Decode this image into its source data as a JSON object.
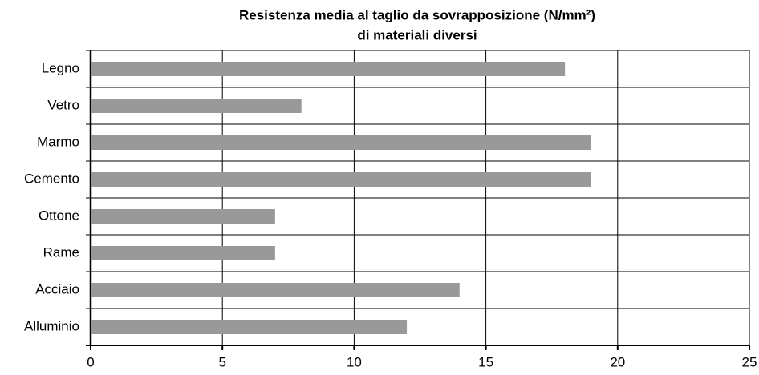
{
  "chart_data": {
    "type": "barh",
    "title": [
      "Resistenza media al taglio da sovrapposizione (N/mm²)",
      "di materiali diversi"
    ],
    "categories": [
      "Legno",
      "Vetro",
      "Marmo",
      "Cemento",
      "Ottone",
      "Rame",
      "Acciaio",
      "Alluminio"
    ],
    "values": [
      18,
      8,
      19,
      19,
      7,
      7,
      14,
      12
    ],
    "color": "#999999",
    "xlim": [
      0,
      25
    ],
    "xticks": [
      0,
      5,
      10,
      15,
      20,
      25
    ],
    "grid": true
  }
}
